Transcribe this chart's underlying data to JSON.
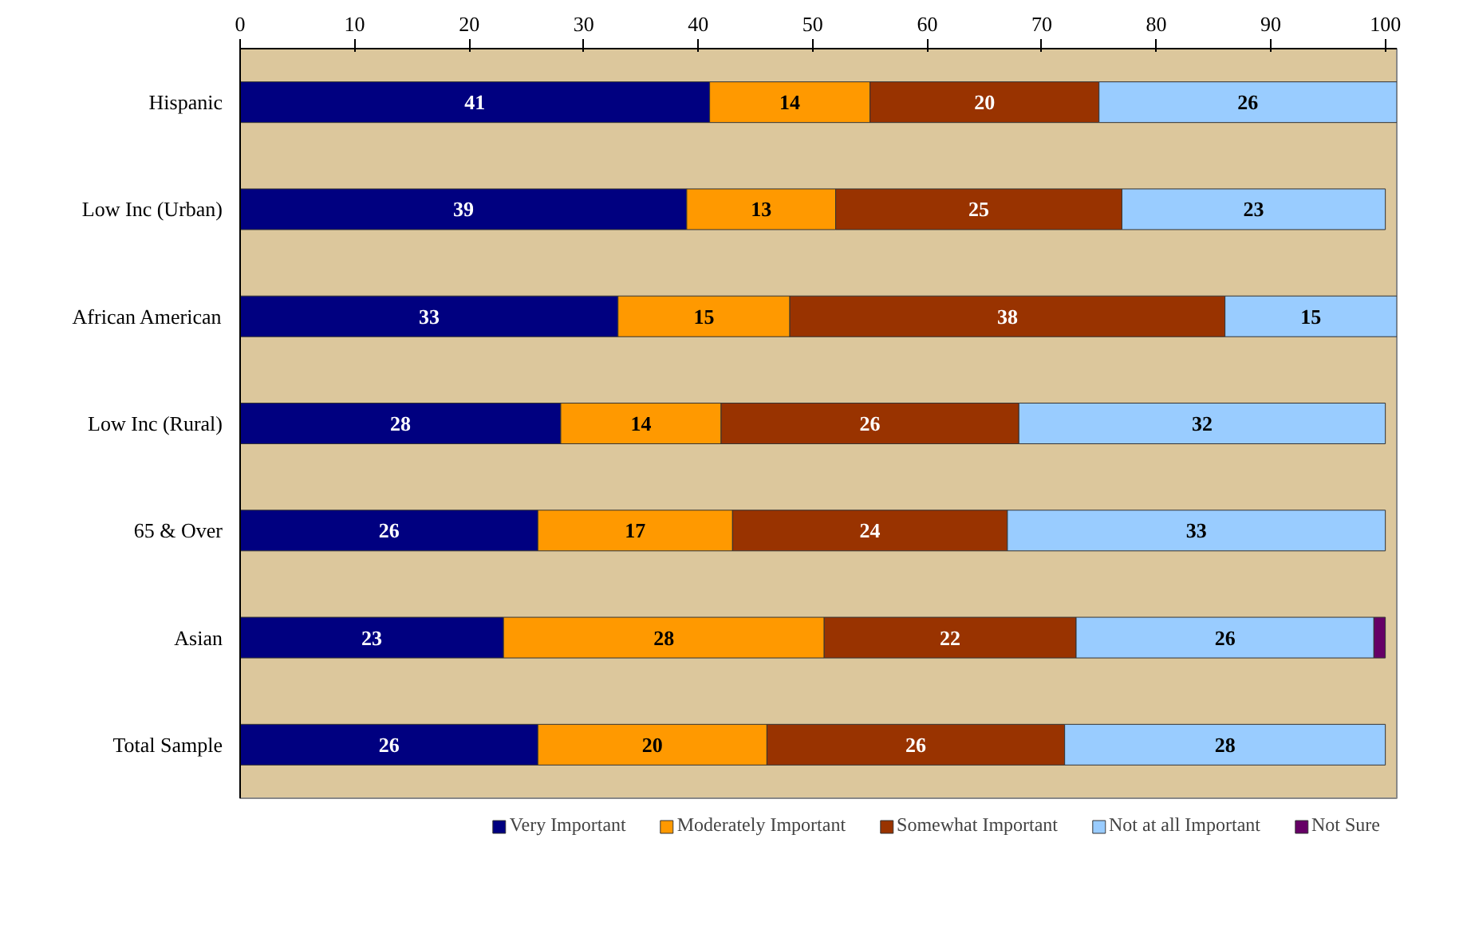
{
  "chart_data": {
    "type": "bar",
    "orientation": "horizontal",
    "stacked": true,
    "categories": [
      "Hispanic",
      "Low Inc (Urban)",
      "African American",
      "Low Inc (Rural)",
      "65 & Over",
      "Asian",
      "Total Sample"
    ],
    "series": [
      {
        "name": "Very Important",
        "color": "#000080",
        "values": [
          41,
          39,
          33,
          28,
          26,
          23,
          26
        ],
        "value_labels": [
          "41",
          "39",
          "33",
          "28",
          "26",
          "23",
          "26"
        ]
      },
      {
        "name": "Moderately Important",
        "color": "#ff9900",
        "values": [
          14,
          13,
          15,
          14,
          17,
          28,
          20
        ],
        "value_labels": [
          "14",
          "13",
          "15",
          "14",
          "17",
          "28",
          "20"
        ]
      },
      {
        "name": "Somewhat Important",
        "color": "#993300",
        "values": [
          20,
          25,
          38,
          26,
          24,
          22,
          26
        ],
        "value_labels": [
          "20",
          "25",
          "38",
          "26",
          "24",
          "22",
          "26"
        ]
      },
      {
        "name": "Not at all Important",
        "color": "#99ccff",
        "values": [
          26,
          23,
          15,
          32,
          33,
          26,
          28
        ],
        "value_labels": [
          "26",
          "23",
          "15",
          "32",
          "33",
          "26",
          "28"
        ]
      },
      {
        "name": "Not Sure",
        "color": "#660066",
        "values": [
          null,
          null,
          null,
          null,
          null,
          1,
          null
        ]
      }
    ],
    "xlim": [
      0,
      101
    ],
    "xticks": [
      0,
      10,
      20,
      30,
      40,
      50,
      60,
      70,
      80,
      90,
      100
    ],
    "grid": false,
    "legend": "bottom"
  }
}
